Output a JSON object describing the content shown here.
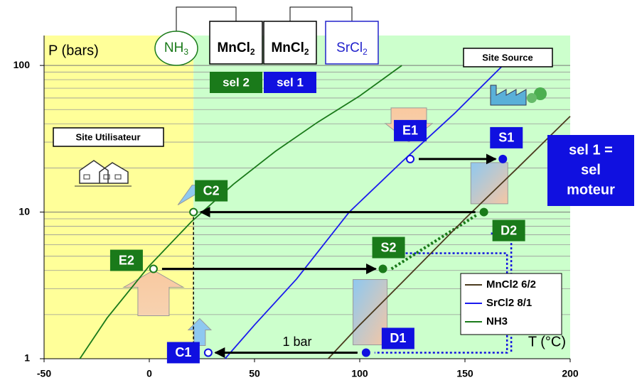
{
  "chart_data": {
    "type": "line",
    "x_label": "T (°C)",
    "y_label": "P (bars)",
    "xlim": [
      -50,
      200
    ],
    "ylim": [
      1,
      160
    ],
    "xticks": [
      -50,
      0,
      50,
      100,
      150,
      200
    ],
    "yticks": [
      1,
      10,
      100
    ],
    "log_y": true,
    "grid": true,
    "legend": "lower right",
    "series": [
      {
        "name": "MnCl2 6/2",
        "color": "#4b3a1e",
        "x": [
          85,
          100,
          120,
          150,
          175,
          200
        ],
        "values": [
          1,
          1.7,
          3.3,
          9,
          20,
          45
        ]
      },
      {
        "name": "SrCl2 8/1",
        "color": "#1a1aee",
        "x": [
          36,
          50,
          70,
          95,
          120,
          145,
          168
        ],
        "values": [
          1,
          1.7,
          3.5,
          10,
          22,
          47,
          100
        ]
      },
      {
        "name": "NH3",
        "color": "#1a7a1a",
        "x": [
          -33,
          -20,
          0,
          20,
          40,
          60,
          80,
          100,
          120
        ],
        "values": [
          1,
          1.9,
          4.3,
          8.6,
          15.5,
          26,
          41,
          62,
          100
        ]
      }
    ],
    "points": [
      {
        "label": "E1",
        "x": 124,
        "y": 23,
        "color": "#1010e0",
        "marker": "open"
      },
      {
        "label": "S1",
        "x": 168,
        "y": 23,
        "color": "#1010e0",
        "marker": "filled"
      },
      {
        "label": "C2",
        "x": 21,
        "y": 10,
        "color": "#1a7a1a",
        "marker": "open"
      },
      {
        "label": "D2",
        "x": 159,
        "y": 10,
        "color": "#1a7a1a",
        "marker": "filled"
      },
      {
        "label": "E2",
        "x": 2,
        "y": 4.1,
        "color": "#1a7a1a",
        "marker": "open"
      },
      {
        "label": "S2",
        "x": 111,
        "y": 4.1,
        "color": "#1a7a1a",
        "marker": "filled"
      },
      {
        "label": "C1",
        "x": 28,
        "y": 1.1,
        "color": "#1010e0",
        "marker": "open"
      },
      {
        "label": "D1",
        "x": 103,
        "y": 1.1,
        "color": "#1010e0",
        "marker": "filled"
      }
    ],
    "annotations": {
      "pressure_note": "1 bar",
      "user_site": "Site Utilisateur",
      "source_site": "Site Source",
      "engine_salt": [
        "sel 1 =",
        "sel",
        "moteur"
      ]
    },
    "reactors": [
      {
        "base": "NH",
        "sub": "3",
        "color": "#1a7a1a"
      },
      {
        "base": "MnCl",
        "sub": "2",
        "color": "#000000"
      },
      {
        "base": "MnCl",
        "sub": "2",
        "color": "#000000"
      },
      {
        "base": "SrCl",
        "sub": "2",
        "color": "#2222cc"
      }
    ],
    "salts": [
      {
        "label": "sel 2",
        "color": "#1a7a1a"
      },
      {
        "label": "sel 1",
        "color": "#1010e0"
      }
    ]
  }
}
